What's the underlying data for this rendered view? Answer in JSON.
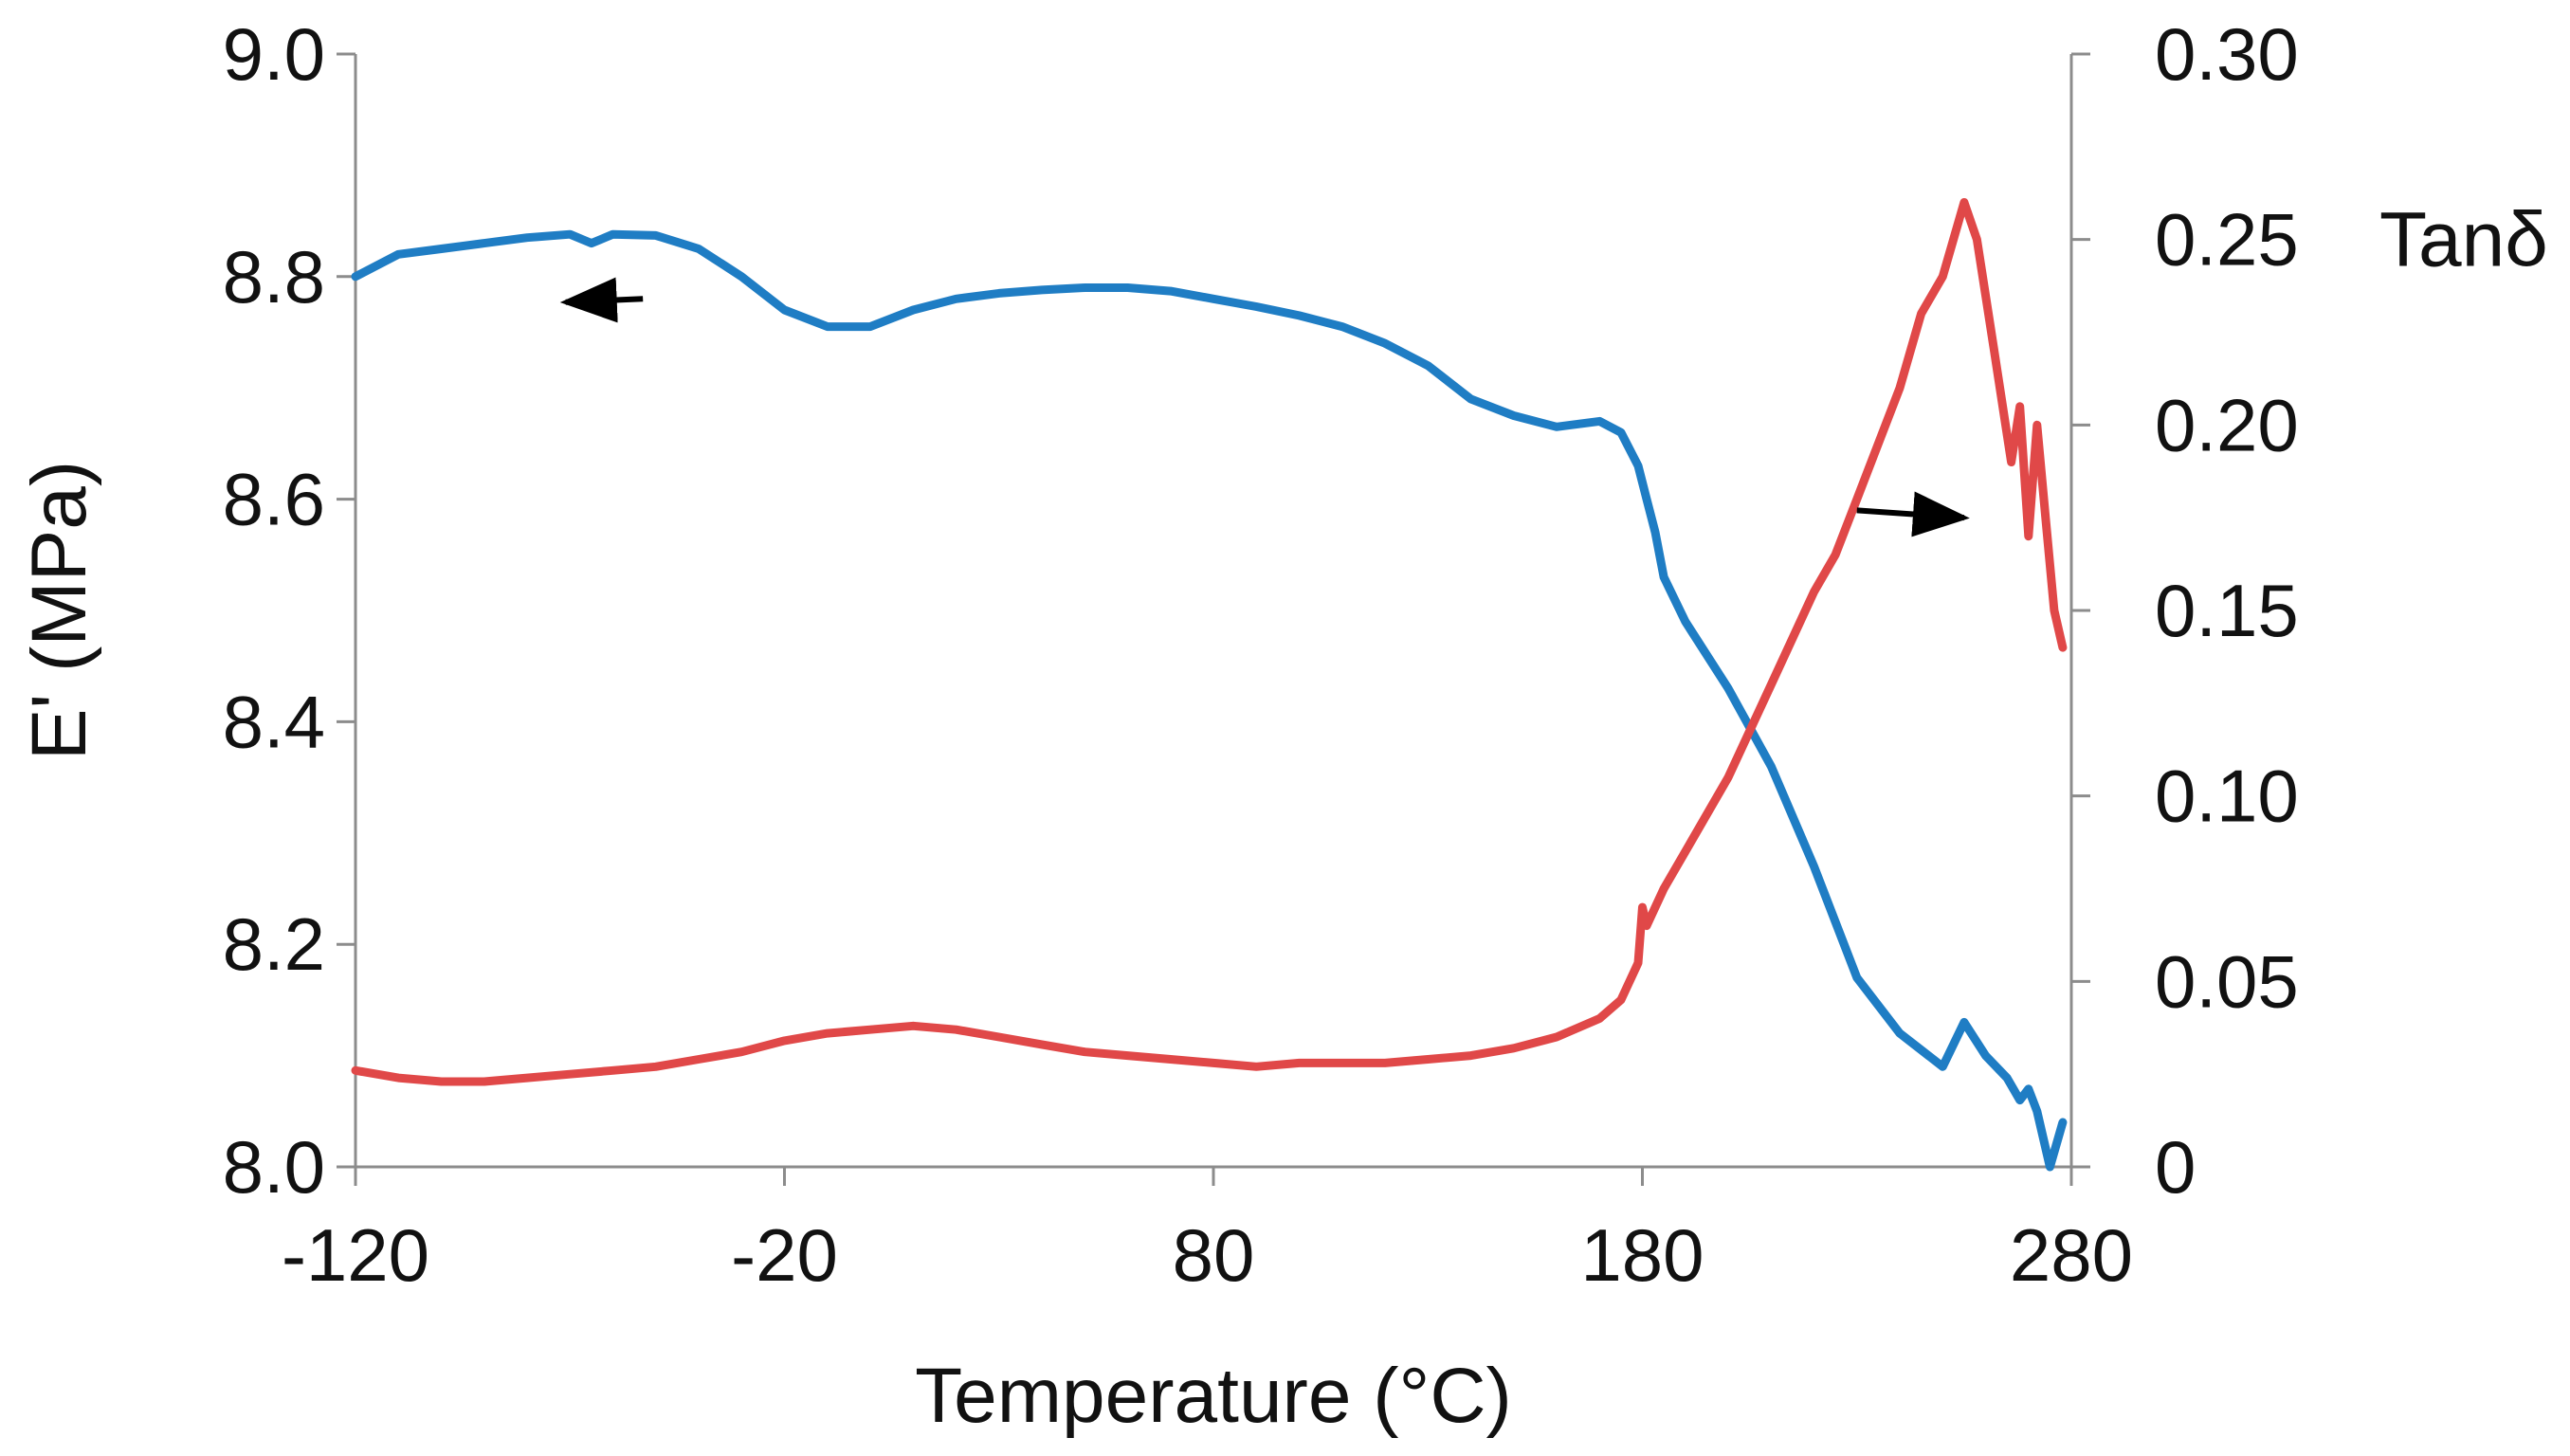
{
  "chart_data": {
    "type": "line",
    "xlabel": "Temperature (°C)",
    "ylabel": "E' (MPa)",
    "y2label": "Tanδ",
    "xlim": [
      -120,
      280
    ],
    "ylim": [
      8.0,
      9.0
    ],
    "y2lim": [
      0,
      0.3
    ],
    "xticks": [
      "-120",
      "-20",
      "80",
      "180",
      "280"
    ],
    "yticks": [
      "8.0",
      "8.2",
      "8.4",
      "8.6",
      "8.8",
      "9.0"
    ],
    "y2ticks": [
      "0",
      "0.05",
      "0.10",
      "0.15",
      "0.20",
      "0.25",
      "0.30"
    ],
    "grid": false,
    "series": [
      {
        "name": "E'",
        "axis": "left",
        "color": "#1f7dc4",
        "x": [
          -120,
          -110,
          -100,
          -90,
          -80,
          -70,
          -65,
          -60,
          -50,
          -40,
          -30,
          -20,
          -10,
          0,
          10,
          20,
          30,
          40,
          50,
          60,
          70,
          80,
          90,
          100,
          110,
          120,
          130,
          140,
          150,
          160,
          170,
          175,
          179,
          181,
          183,
          185,
          190,
          200,
          210,
          220,
          230,
          240,
          250,
          255,
          260,
          265,
          268,
          270,
          272,
          275,
          278
        ],
        "values": [
          8.8,
          8.82,
          8.825,
          8.83,
          8.835,
          8.838,
          8.83,
          8.838,
          8.837,
          8.825,
          8.8,
          8.77,
          8.755,
          8.755,
          8.77,
          8.78,
          8.785,
          8.788,
          8.79,
          8.79,
          8.787,
          8.78,
          8.773,
          8.765,
          8.755,
          8.74,
          8.72,
          8.69,
          8.675,
          8.665,
          8.67,
          8.66,
          8.63,
          8.6,
          8.57,
          8.53,
          8.49,
          8.43,
          8.36,
          8.27,
          8.17,
          8.12,
          8.09,
          8.13,
          8.1,
          8.08,
          8.06,
          8.07,
          8.05,
          8.0,
          8.04
        ]
      },
      {
        "name": "Tanδ",
        "axis": "right",
        "color": "#e04848",
        "x": [
          -120,
          -110,
          -100,
          -90,
          -80,
          -70,
          -60,
          -50,
          -40,
          -30,
          -20,
          -10,
          0,
          10,
          20,
          30,
          40,
          50,
          60,
          70,
          80,
          90,
          100,
          110,
          120,
          130,
          140,
          150,
          160,
          170,
          175,
          179,
          180,
          181,
          185,
          190,
          200,
          210,
          220,
          225,
          230,
          240,
          245,
          250,
          255,
          258,
          262,
          266,
          268,
          270,
          272,
          274,
          276,
          278
        ],
        "values": [
          0.026,
          0.024,
          0.023,
          0.023,
          0.024,
          0.025,
          0.026,
          0.027,
          0.029,
          0.031,
          0.034,
          0.036,
          0.037,
          0.038,
          0.037,
          0.035,
          0.033,
          0.031,
          0.03,
          0.029,
          0.028,
          0.027,
          0.028,
          0.028,
          0.028,
          0.029,
          0.03,
          0.032,
          0.035,
          0.04,
          0.045,
          0.055,
          0.07,
          0.065,
          0.075,
          0.085,
          0.105,
          0.13,
          0.155,
          0.165,
          0.18,
          0.21,
          0.23,
          0.24,
          0.26,
          0.25,
          0.22,
          0.19,
          0.205,
          0.17,
          0.2,
          0.175,
          0.15,
          0.14
        ]
      }
    ],
    "annotations": [
      {
        "type": "arrow",
        "direction": "left",
        "points_to": "E' (left axis)"
      },
      {
        "type": "arrow",
        "direction": "right",
        "points_to": "Tanδ (right axis)"
      }
    ]
  }
}
